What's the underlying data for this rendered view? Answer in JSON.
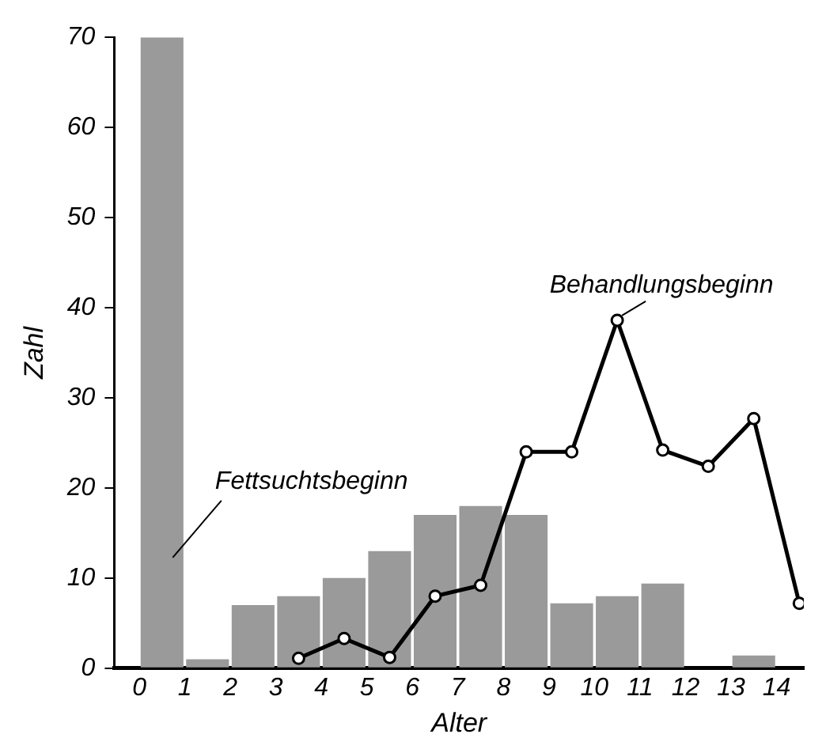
{
  "chart_data": {
    "type": "histogram",
    "xlabel": "Alter",
    "ylabel": "Zahl",
    "bins": [
      0,
      1,
      2,
      3,
      4,
      5,
      6,
      7,
      8,
      9,
      10,
      11,
      12,
      13,
      14
    ],
    "xlim": [
      -0.55,
      14.6
    ],
    "xticks": [
      0,
      1,
      2,
      3,
      4,
      5,
      6,
      7,
      8,
      9,
      10,
      11,
      12,
      13,
      14
    ],
    "ylim": [
      0,
      70
    ],
    "yticks": [
      0,
      10,
      20,
      30,
      40,
      50,
      60,
      70
    ],
    "grid": false,
    "legend": false,
    "series": [
      {
        "type": "histogram",
        "name": "Fettsuchtsbeginn",
        "color": "#9a9a9a",
        "values": [
          70,
          1,
          7,
          8,
          10,
          13,
          17,
          18,
          17,
          7.2,
          8,
          9.4,
          0,
          1.4
        ]
      },
      {
        "type": "line",
        "name": "Behandlungsbeginn",
        "color": "#000000",
        "marker": "circle",
        "line_style": "solid",
        "x": [
          3.5,
          4.5,
          5.5,
          6.5,
          7.5,
          8.5,
          9.5,
          10.5,
          11.5,
          12.5,
          13.5,
          14.5
        ],
        "values": [
          1.1,
          3.3,
          1.2,
          8,
          9.2,
          24,
          24,
          38.6,
          24.2,
          22.4,
          27.7,
          7.2
        ]
      }
    ]
  }
}
